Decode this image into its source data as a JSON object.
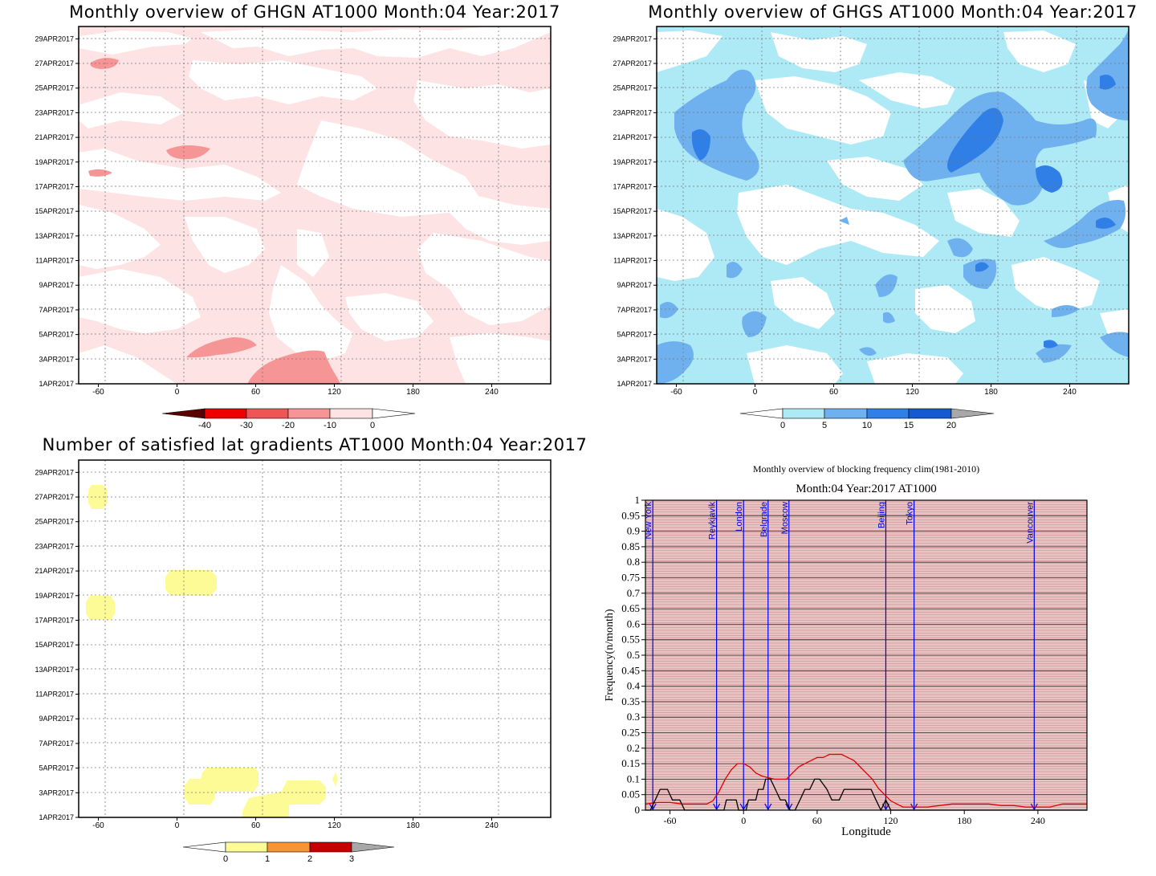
{
  "chart_data": [
    {
      "type": "heatmap",
      "title": "Monthly overview of GHGN AT1000 Month:04 Year:2017",
      "x_ticks": [
        "-60",
        "0",
        "60",
        "120",
        "180",
        "240"
      ],
      "y_ticks": [
        "1APR2017",
        "3APR2017",
        "5APR2017",
        "7APR2017",
        "9APR2017",
        "11APR2017",
        "13APR2017",
        "15APR2017",
        "17APR2017",
        "19APR2017",
        "21APR2017",
        "23APR2017",
        "25APR2017",
        "27APR2017",
        "29APR2017"
      ],
      "xlim": [
        -75,
        285
      ],
      "ylim": [
        1,
        30
      ],
      "grid": true,
      "colorbar": {
        "labels": [
          "-40",
          "-30",
          "-20",
          "-10",
          "0"
        ],
        "colors": [
          "#5a0000",
          "#ee0000",
          "#ee5555",
          "#f59595",
          "#fde3e3",
          "#ffffff"
        ]
      }
    },
    {
      "type": "heatmap",
      "title": "Monthly overview of GHGS AT1000 Month:04 Year:2017",
      "x_ticks": [
        "-60",
        "0",
        "60",
        "120",
        "180",
        "240"
      ],
      "y_ticks": [
        "1APR2017",
        "3APR2017",
        "5APR2017",
        "7APR2017",
        "9APR2017",
        "11APR2017",
        "13APR2017",
        "15APR2017",
        "17APR2017",
        "19APR2017",
        "21APR2017",
        "23APR2017",
        "25APR2017",
        "27APR2017",
        "29APR2017"
      ],
      "xlim": [
        -75,
        285
      ],
      "ylim": [
        1,
        30
      ],
      "grid": true,
      "colorbar": {
        "labels": [
          "0",
          "5",
          "10",
          "15",
          "20"
        ],
        "colors": [
          "#ffffff",
          "#aeeaf5",
          "#6fb0ee",
          "#2f7fe6",
          "#1459d0",
          "#a8a8a8"
        ]
      }
    },
    {
      "type": "heatmap",
      "title": "Number of satisfied lat gradients AT1000 Month:04 Year:2017",
      "x_ticks": [
        "-60",
        "0",
        "60",
        "120",
        "180",
        "240"
      ],
      "y_ticks": [
        "1APR2017",
        "3APR2017",
        "5APR2017",
        "7APR2017",
        "9APR2017",
        "11APR2017",
        "13APR2017",
        "15APR2017",
        "17APR2017",
        "19APR2017",
        "21APR2017",
        "23APR2017",
        "25APR2017",
        "27APR2017",
        "29APR2017"
      ],
      "xlim": [
        -75,
        285
      ],
      "ylim": [
        1,
        30
      ],
      "grid": true,
      "colorbar": {
        "labels": [
          "0",
          "1",
          "2",
          "3"
        ],
        "colors": [
          "#ffffff",
          "#fdfb96",
          "#f99531",
          "#c40000",
          "#a8a8a8"
        ]
      }
    },
    {
      "type": "line",
      "title": "Monthly overview of blocking frequency clim(1981-2010)",
      "subtitle": "Month:04 Year:2017  AT1000",
      "xlabel": "Longitude",
      "ylabel": "Frequency(n/month)",
      "xlim": [
        -80,
        280
      ],
      "ylim": [
        0,
        1
      ],
      "x_ticks": [
        "-60",
        "0",
        "60",
        "120",
        "180",
        "240"
      ],
      "y_ticks": [
        "0",
        "0.05",
        "0.1",
        "0.15",
        "0.2",
        "0.25",
        "0.3",
        "0.35",
        "0.4",
        "0.45",
        "0.5",
        "0.55",
        "0.6",
        "0.65",
        "0.7",
        "0.75",
        "0.8",
        "0.85",
        "0.9",
        "0.95",
        "1"
      ],
      "cities": [
        {
          "name": "New York",
          "lon": -74
        },
        {
          "name": "Reykjavik",
          "lon": -22
        },
        {
          "name": "London",
          "lon": 0
        },
        {
          "name": "Belgrade",
          "lon": 20
        },
        {
          "name": "Moscow",
          "lon": 37
        },
        {
          "name": "Beijing",
          "lon": 116
        },
        {
          "name": "Tokyo",
          "lon": 139
        },
        {
          "name": "Vancouver",
          "lon": 237
        }
      ],
      "series": [
        {
          "color": "#dd0000",
          "x": [
            -80,
            -70,
            -60,
            -50,
            -40,
            -30,
            -25,
            -20,
            -15,
            -10,
            -5,
            0,
            5,
            10,
            15,
            20,
            25,
            30,
            35,
            40,
            45,
            50,
            55,
            60,
            65,
            70,
            75,
            80,
            85,
            90,
            95,
            100,
            105,
            110,
            115,
            120,
            125,
            130,
            140,
            150,
            160,
            170,
            180,
            190,
            200,
            210,
            220,
            230,
            240,
            250,
            260,
            270,
            280
          ],
          "y": [
            0.02,
            0.025,
            0.025,
            0.02,
            0.02,
            0.02,
            0.03,
            0.06,
            0.1,
            0.13,
            0.15,
            0.15,
            0.14,
            0.12,
            0.11,
            0.105,
            0.1,
            0.1,
            0.1,
            0.12,
            0.14,
            0.15,
            0.16,
            0.17,
            0.17,
            0.18,
            0.18,
            0.18,
            0.17,
            0.16,
            0.14,
            0.12,
            0.1,
            0.07,
            0.05,
            0.03,
            0.02,
            0.01,
            0.01,
            0.01,
            0.015,
            0.02,
            0.02,
            0.02,
            0.02,
            0.015,
            0.015,
            0.01,
            0.01,
            0.01,
            0.02,
            0.02,
            0.02
          ]
        },
        {
          "color": "#000000",
          "x": [
            -80,
            -76,
            -72,
            -68,
            -62,
            -58,
            -52,
            -48,
            -30,
            -22,
            -16,
            -14,
            -6,
            -4,
            2,
            4,
            10,
            12,
            16,
            18,
            22,
            26,
            30,
            34,
            38,
            42,
            46,
            50,
            54,
            58,
            62,
            68,
            72,
            78,
            82,
            90,
            94,
            104,
            108,
            112,
            116,
            120,
            124,
            280
          ],
          "y": [
            0,
            0,
            0.033,
            0.067,
            0.067,
            0.033,
            0.033,
            0,
            0,
            0,
            0,
            0.033,
            0.033,
            0,
            0,
            0.033,
            0.033,
            0.067,
            0.067,
            0.1,
            0.1,
            0.067,
            0.033,
            0.033,
            0,
            0,
            0.033,
            0.067,
            0.067,
            0.1,
            0.1,
            0.067,
            0.033,
            0.033,
            0.067,
            0.067,
            0.067,
            0.067,
            0.033,
            0,
            0.033,
            0,
            0,
            0
          ]
        }
      ]
    }
  ]
}
